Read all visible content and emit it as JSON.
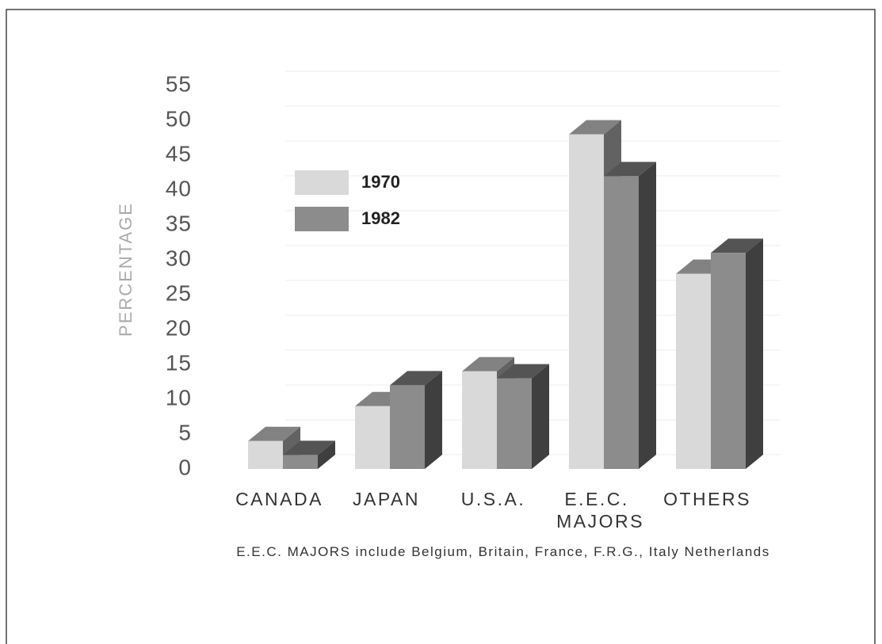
{
  "chart_data": {
    "type": "bar3d",
    "categories": [
      "CANADA",
      "JAPAN",
      "U.S.A.",
      "E.E.C. MAJORS",
      "OTHERS"
    ],
    "series": [
      {
        "name": "1970",
        "color": "#d9d9d9",
        "values": [
          4,
          9,
          14,
          48,
          28
        ]
      },
      {
        "name": "1982",
        "color": "#8c8c8c",
        "values": [
          2,
          12,
          13,
          42,
          31
        ]
      }
    ],
    "y_label": "PERCENTAGE",
    "ylim": [
      0,
      55
    ],
    "yticks": [
      0,
      5,
      10,
      15,
      20,
      25,
      30,
      35,
      40,
      45,
      50,
      55
    ],
    "grid": true,
    "footnote": "E.E.C. MAJORS include Belgium, Britain, France, F.R.G., Italy Netherlands"
  }
}
